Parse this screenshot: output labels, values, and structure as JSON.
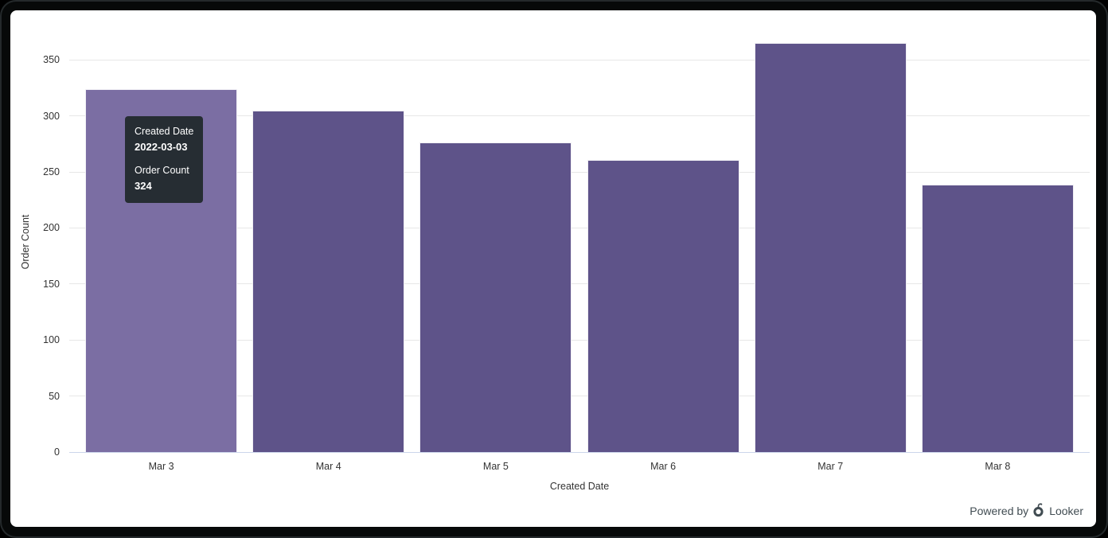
{
  "chart_data": {
    "type": "bar",
    "title": "",
    "categories": [
      "Mar 3",
      "Mar 4",
      "Mar 5",
      "Mar 6",
      "Mar 7",
      "Mar 8"
    ],
    "values": [
      324,
      305,
      276,
      261,
      365,
      239
    ],
    "xlabel": "Created Date",
    "ylabel": "Order Count",
    "ylim": [
      0,
      375
    ],
    "yticks": [
      0,
      50,
      100,
      150,
      200,
      250,
      300,
      350
    ],
    "grid": true,
    "legend": "none",
    "highlighted_index": 0
  },
  "tooltip": {
    "rows": [
      {
        "label": "Created Date",
        "value": "2022-03-03"
      },
      {
        "label": "Order Count",
        "value": "324"
      }
    ]
  },
  "footer": {
    "powered_by": "Powered by",
    "brand": "Looker"
  },
  "colors": {
    "bar": "#5e5389",
    "bar_highlight": "#7b6ea3",
    "bar_border": "#ffffff",
    "gridline": "#e7e7e7",
    "axis_line": "#ccd6eb",
    "tooltip_bg": "#262d33",
    "axis_text": "#333333",
    "footer_text": "#414c52"
  }
}
